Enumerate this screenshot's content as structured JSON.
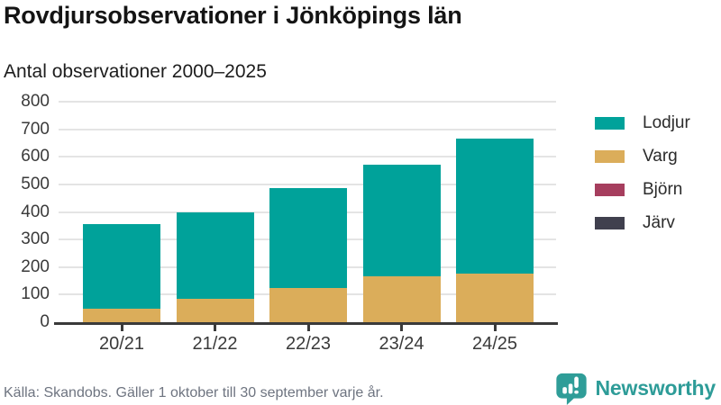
{
  "header": {
    "title": "Rovdjursobservationer i Jönköpings län",
    "subtitle": "Antal observationer 2000–2025"
  },
  "chart_data": {
    "type": "bar",
    "stacked": true,
    "title": "Rovdjursobservationer i Jönköpings län",
    "subtitle": "Antal observationer 2000–2025",
    "categories": [
      "20/21",
      "21/22",
      "22/23",
      "23/24",
      "24/25"
    ],
    "series": [
      {
        "name": "Lodjur",
        "color": "#00A29A",
        "values": [
          305,
          315,
          360,
          405,
          490
        ]
      },
      {
        "name": "Varg",
        "color": "#DBAD5A",
        "values": [
          50,
          85,
          125,
          165,
          175
        ]
      },
      {
        "name": "Björn",
        "color": "#A63E5E",
        "values": [
          0,
          0,
          0,
          0,
          0
        ]
      },
      {
        "name": "Järv",
        "color": "#40404E",
        "values": [
          0,
          0,
          0,
          0,
          0
        ]
      }
    ],
    "stack_totals": [
      355,
      400,
      485,
      570,
      665
    ],
    "xlabel": "",
    "ylabel": "",
    "ylim": [
      0,
      800
    ],
    "yticks": [
      0,
      100,
      200,
      300,
      400,
      500,
      600,
      700,
      800
    ],
    "grid": true,
    "legend_position": "right"
  },
  "footer": {
    "source": "Källa: Skandobs. Gäller 1 oktober till 30 september varje år."
  },
  "brand": {
    "name": "Newsworthy",
    "logo_icon": "bar-chart-speech-bubble-icon",
    "color": "#2E9C98"
  }
}
